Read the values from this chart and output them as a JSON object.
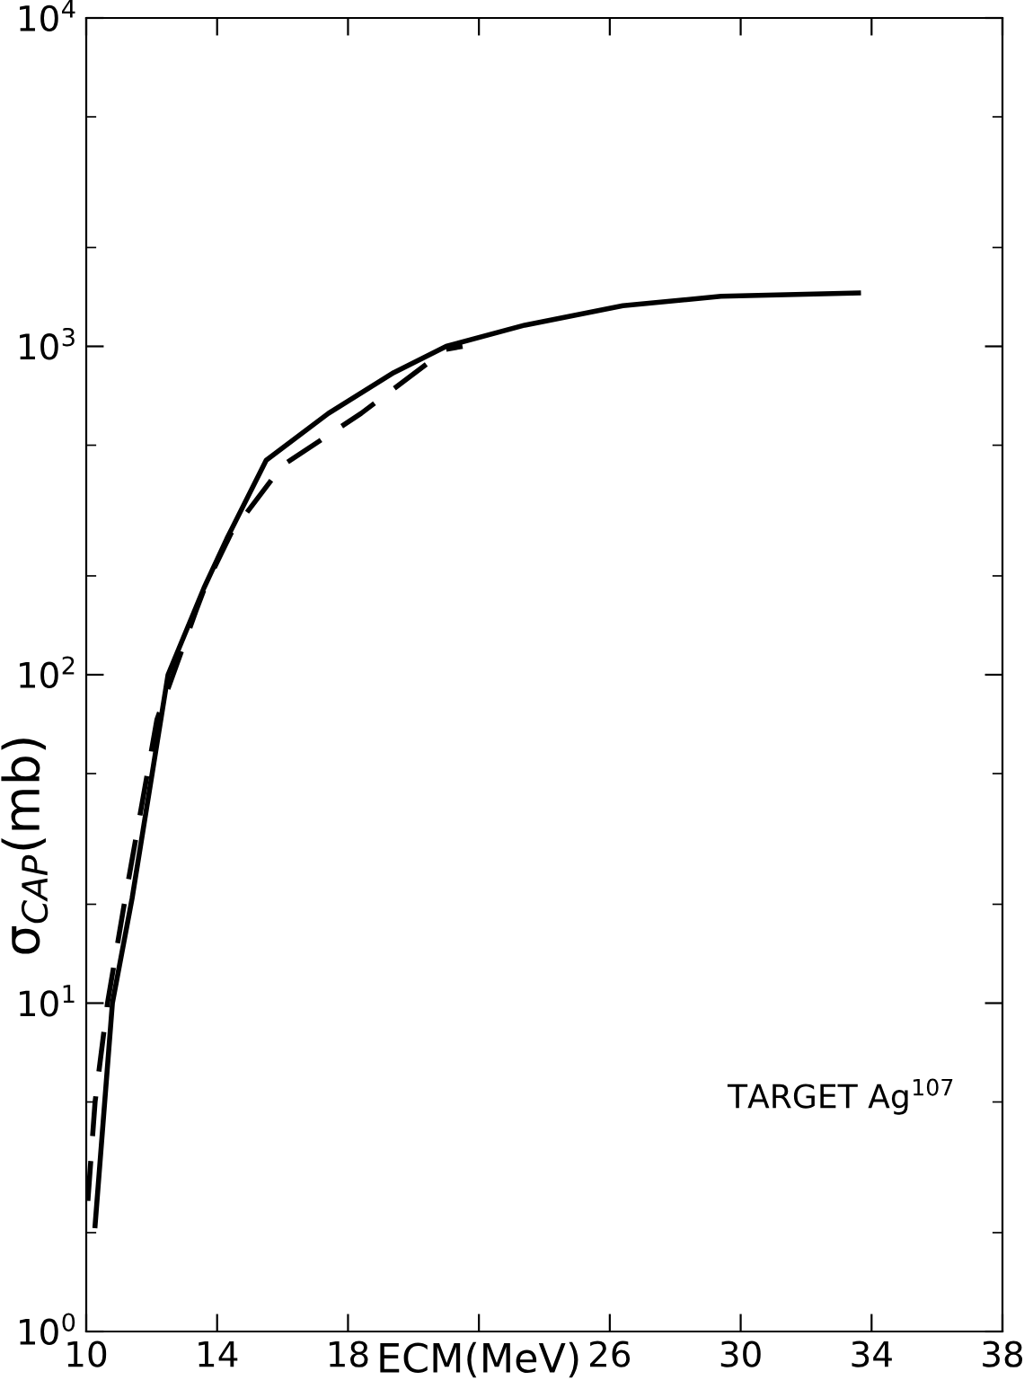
{
  "chart_data": {
    "type": "line",
    "xlabel": "ECM(MeV)",
    "ylabel": "σ$_{CAP}$(mb)",
    "log": "y",
    "xlim": [
      10,
      38
    ],
    "xticks": [
      10,
      14,
      18,
      {
        "value": 22,
        "label": null
      },
      26,
      30,
      34,
      38
    ],
    "ylim": [
      1,
      10000
    ],
    "yticks": [
      {
        "value": 1,
        "label": "10$^{0}$"
      },
      {
        "value": 10,
        "label": "10$^{1}$"
      },
      {
        "value": 100,
        "label": "10$^{2}$"
      },
      {
        "value": 1000,
        "label": "10$^{3}$"
      },
      {
        "value": 10000,
        "label": "10$^{4}$"
      }
    ],
    "grid": false,
    "legend": false,
    "series": [
      {
        "color": "#000000",
        "line_style": "solid",
        "x": [
          10.27,
          10.8,
          11.4,
          12.5,
          13.6,
          14.3,
          15.5,
          17.4,
          19.4,
          21.0,
          23.4,
          26.4,
          29.4,
          33.6
        ],
        "values": [
          2.1,
          10,
          20.8,
          100,
          184,
          260,
          450,
          625,
          832,
          1000,
          1160,
          1330,
          1420,
          1455
        ]
      },
      {
        "color": "#000000",
        "line_style": "dashed",
        "x": [
          10.05,
          10.27,
          10.65,
          11.19,
          12.16,
          13.35,
          13.62,
          14.43,
          16.0,
          18.4,
          21.0,
          21.5
        ],
        "values": [
          2.5,
          5,
          10,
          20.8,
          73,
          156,
          184,
          270,
          434,
          625,
          980,
          1000
        ]
      }
    ],
    "annotations": [
      "TARGET Ag$^{107}$"
    ]
  }
}
